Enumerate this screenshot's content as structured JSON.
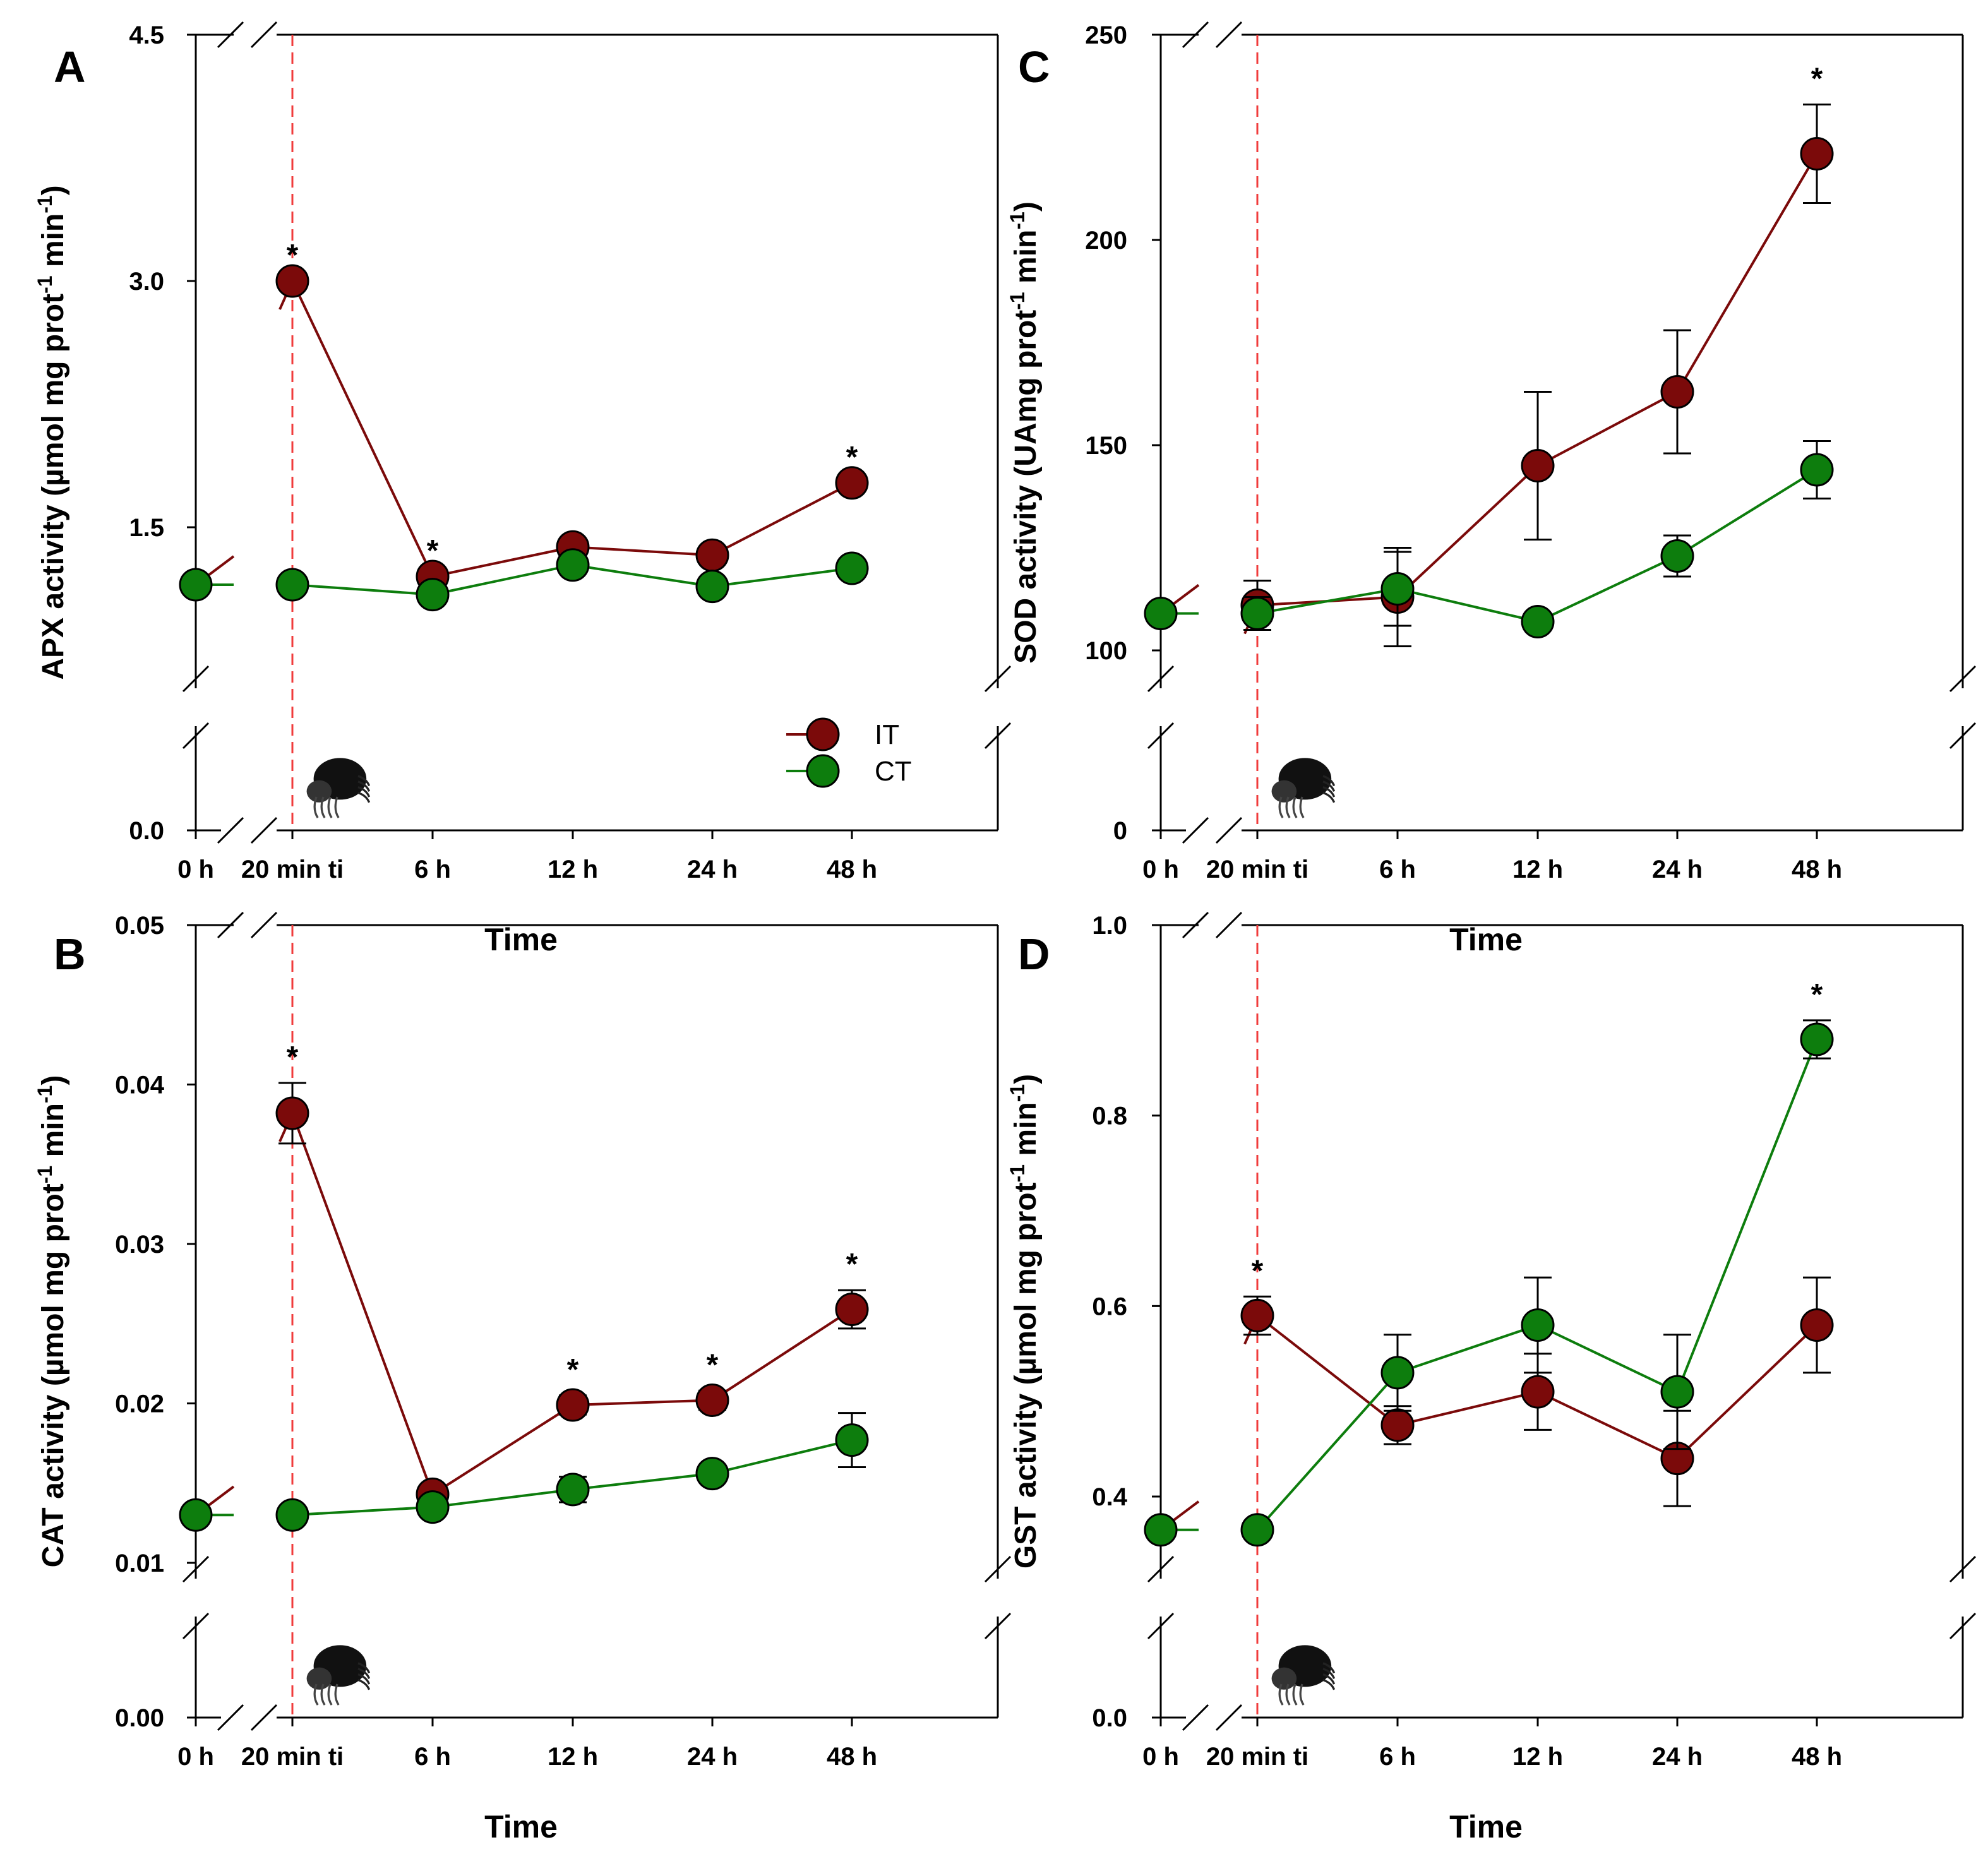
{
  "x_categories": [
    "0 h",
    "20 min ti",
    "6 h",
    "12 h",
    "24 h",
    "48 h"
  ],
  "x_axis_label": "Time",
  "legend": [
    {
      "name": "IT",
      "color": "#7b0a0a"
    },
    {
      "name": "CT",
      "color": "#0d7d0d"
    }
  ],
  "colors": {
    "IT": "#7b0a0a",
    "CT": "#0d7d0d",
    "infestation_line": "#f03c3c"
  },
  "infestation_icon": "mite-icon",
  "chart_data": [
    {
      "type": "line",
      "panel": "A",
      "ylabel": {
        "prefix": "APX activity (µmol mg prot",
        "sup": "-1",
        "mid": " min",
        "sup2": "-1",
        "suffix": ")"
      },
      "ylim": [
        0,
        4.5
      ],
      "y_break": true,
      "yticks": [
        {
          "v": 0,
          "t": "0.0"
        },
        {
          "v": 1.5,
          "t": "1.5"
        },
        {
          "v": 3.0,
          "t": "3.0"
        },
        {
          "v": 4.5,
          "t": "4.5"
        }
      ],
      "series": [
        {
          "name": "IT",
          "values": [
            1.15,
            3.0,
            1.2,
            1.38,
            1.33,
            1.77
          ],
          "errors": [
            0,
            0,
            0,
            0,
            0,
            0
          ]
        },
        {
          "name": "CT",
          "values": [
            1.15,
            1.15,
            1.09,
            1.27,
            1.14,
            1.25
          ],
          "errors": [
            0,
            0,
            0,
            0,
            0,
            0
          ]
        }
      ],
      "significance": [
        {
          "index": 1,
          "label": "*"
        },
        {
          "index": 2,
          "label": "*"
        },
        {
          "index": 5,
          "label": "*"
        }
      ],
      "show_legend": true
    },
    {
      "type": "line",
      "panel": "B",
      "ylabel": {
        "prefix": "CAT activity (µmol mg prot",
        "sup": "-1",
        "mid": " min",
        "sup2": "-1",
        "suffix": ")"
      },
      "ylim": [
        0,
        0.05
      ],
      "y_break": true,
      "yticks": [
        {
          "v": 0,
          "t": "0.00"
        },
        {
          "v": 0.01,
          "t": "0.01"
        },
        {
          "v": 0.02,
          "t": "0.02"
        },
        {
          "v": 0.03,
          "t": "0.03"
        },
        {
          "v": 0.04,
          "t": "0.04"
        },
        {
          "v": 0.05,
          "t": "0.05"
        }
      ],
      "series": [
        {
          "name": "IT",
          "values": [
            0.013,
            0.0382,
            0.0143,
            0.0199,
            0.0202,
            0.0259
          ],
          "errors": [
            0,
            0.0019,
            0.0005,
            0.0006,
            0.0006,
            0.0012
          ]
        },
        {
          "name": "CT",
          "values": [
            0.013,
            0.013,
            0.0135,
            0.0146,
            0.0156,
            0.0177
          ],
          "errors": [
            0,
            0,
            0.0004,
            0.0008,
            0.0004,
            0.0017
          ]
        }
      ],
      "significance": [
        {
          "index": 1,
          "label": "*"
        },
        {
          "index": 3,
          "label": "*"
        },
        {
          "index": 4,
          "label": "*"
        },
        {
          "index": 5,
          "label": "*"
        }
      ],
      "show_legend": false
    },
    {
      "type": "line",
      "panel": "C",
      "ylabel": {
        "prefix": "SOD activity (UAmg prot",
        "sup": "-1",
        "mid": " min",
        "sup2": "-1",
        "suffix": ")"
      },
      "ylim": [
        0,
        250
      ],
      "y_break": true,
      "yticks": [
        {
          "v": 0,
          "t": "0"
        },
        {
          "v": 100,
          "t": "100"
        },
        {
          "v": 150,
          "t": "150"
        },
        {
          "v": 200,
          "t": "200"
        },
        {
          "v": 250,
          "t": "250"
        }
      ],
      "series": [
        {
          "name": "IT",
          "values": [
            109,
            111,
            113,
            145,
            163,
            221
          ],
          "errors": [
            0,
            6,
            12,
            18,
            15,
            12
          ]
        },
        {
          "name": "CT",
          "values": [
            109,
            109,
            115,
            107,
            123,
            144
          ],
          "errors": [
            0,
            4,
            9,
            2,
            5,
            7
          ]
        }
      ],
      "significance": [
        {
          "index": 5,
          "label": "*"
        }
      ],
      "show_legend": false
    },
    {
      "type": "line",
      "panel": "D",
      "ylabel": {
        "prefix": "GST activity (µmol mg prot",
        "sup": "-1",
        "mid": " min",
        "sup2": "-1",
        "suffix": ")"
      },
      "ylim": [
        0,
        1.0
      ],
      "y_break": true,
      "yticks": [
        {
          "v": 0,
          "t": "0.0"
        },
        {
          "v": 0.4,
          "t": "0.4"
        },
        {
          "v": 0.6,
          "t": "0.6"
        },
        {
          "v": 0.8,
          "t": "0.8"
        },
        {
          "v": 1.0,
          "t": "1.0"
        }
      ],
      "series": [
        {
          "name": "IT",
          "values": [
            0.365,
            0.59,
            0.475,
            0.51,
            0.44,
            0.58
          ],
          "errors": [
            0,
            0.02,
            0.02,
            0.04,
            0.05,
            0.05
          ]
        },
        {
          "name": "CT",
          "values": [
            0.365,
            0.365,
            0.53,
            0.58,
            0.51,
            0.88
          ],
          "errors": [
            0,
            0,
            0.04,
            0.05,
            0.06,
            0.02
          ]
        }
      ],
      "significance": [
        {
          "index": 1,
          "label": "*"
        },
        {
          "index": 5,
          "label": "*"
        }
      ],
      "show_legend": false
    }
  ]
}
